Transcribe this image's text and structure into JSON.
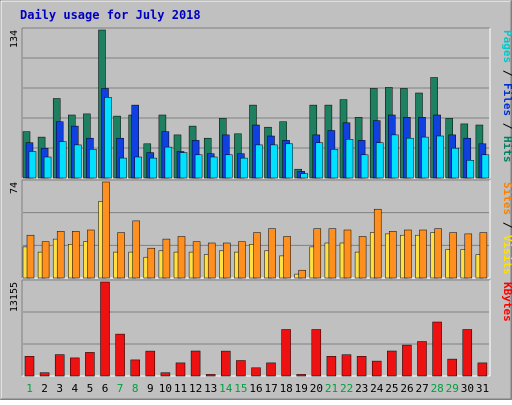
{
  "chart_data": {
    "type": "bar",
    "title": "Daily usage for July 2018",
    "categories": [
      "1",
      "2",
      "3",
      "4",
      "5",
      "6",
      "7",
      "8",
      "9",
      "10",
      "11",
      "12",
      "13",
      "14",
      "15",
      "16",
      "17",
      "18",
      "19",
      "20",
      "21",
      "22",
      "23",
      "24",
      "25",
      "26",
      "27",
      "28",
      "29",
      "30",
      "31"
    ],
    "weekend_days": [
      1,
      7,
      8,
      14,
      15,
      21,
      22,
      28,
      29
    ],
    "panels": [
      {
        "id": "top",
        "ymax": 134,
        "ymax_label": "134",
        "legend": [
          {
            "text": "Pages",
            "color": "#00c8c8"
          },
          {
            "text": " / ",
            "color": "#000000"
          },
          {
            "text": "Files",
            "color": "#0030d0"
          },
          {
            "text": " / ",
            "color": "#000000"
          },
          {
            "text": "Hits",
            "color": "#008060"
          }
        ],
        "series": [
          {
            "name": "Hits",
            "color": "#1e8060",
            "values": [
              42,
              37,
              72,
              57,
              58,
              134,
              56,
              57,
              31,
              57,
              39,
              47,
              36,
              54,
              40,
              66,
              46,
              51,
              8,
              66,
              66,
              71,
              55,
              81,
              82,
              81,
              77,
              91,
              54,
              49,
              48
            ]
          },
          {
            "name": "Files",
            "color": "#1040e0",
            "values": [
              32,
              27,
              51,
              47,
              36,
              81,
              36,
              66,
              23,
              42,
              24,
              34,
              22,
              39,
              22,
              48,
              38,
              34,
              6,
              39,
              43,
              50,
              34,
              52,
              57,
              55,
              55,
              57,
              39,
              36,
              31
            ]
          },
          {
            "name": "Pages",
            "color": "#00e0ff",
            "values": [
              24,
              19,
              33,
              30,
              26,
              73,
              18,
              19,
              18,
              28,
              23,
              21,
              19,
              21,
              18,
              30,
              30,
              31,
              4,
              32,
              26,
              35,
              21,
              32,
              39,
              36,
              37,
              38,
              27,
              16,
              21
            ]
          }
        ]
      },
      {
        "id": "mid",
        "ymax": 74,
        "ymax_label": "74",
        "legend": [
          {
            "text": "Sites",
            "color": "#ff8000"
          },
          {
            "text": " / ",
            "color": "#000000"
          },
          {
            "text": "Visits",
            "color": "#ffe000"
          }
        ],
        "series": [
          {
            "name": "Visits",
            "color": "#ffe040",
            "values": [
              24,
              20,
              30,
              26,
              28,
              59,
              20,
              20,
              16,
              21,
              20,
              20,
              18,
              21,
              20,
              26,
              21,
              17,
              3,
              24,
              27,
              27,
              20,
              35,
              34,
              33,
              33,
              35,
              22,
              22,
              18
            ]
          },
          {
            "name": "Sites",
            "color": "#ff9020",
            "values": [
              33,
              28,
              36,
              36,
              37,
              74,
              35,
              44,
              23,
              30,
              32,
              28,
              27,
              27,
              28,
              35,
              38,
              32,
              6,
              38,
              38,
              37,
              32,
              53,
              36,
              37,
              37,
              38,
              35,
              34,
              35
            ]
          }
        ]
      },
      {
        "id": "bot",
        "ymax": 13155,
        "ymax_label": "13155",
        "legend": [
          {
            "text": "KBytes",
            "color": "#ff0000"
          }
        ],
        "series": [
          {
            "name": "KBytes",
            "color": "#ee1111",
            "values": [
              2750,
              460,
              3000,
              2530,
              3300,
              13155,
              5870,
              2260,
              3480,
              460,
              1830,
              3500,
              230,
              3480,
              2170,
              1150,
              1840,
              6510,
              230,
              6510,
              2760,
              2980,
              2760,
              2090,
              3500,
              4330,
              4830,
              7560,
              2370,
              6510,
              1840
            ]
          }
        ]
      }
    ]
  }
}
